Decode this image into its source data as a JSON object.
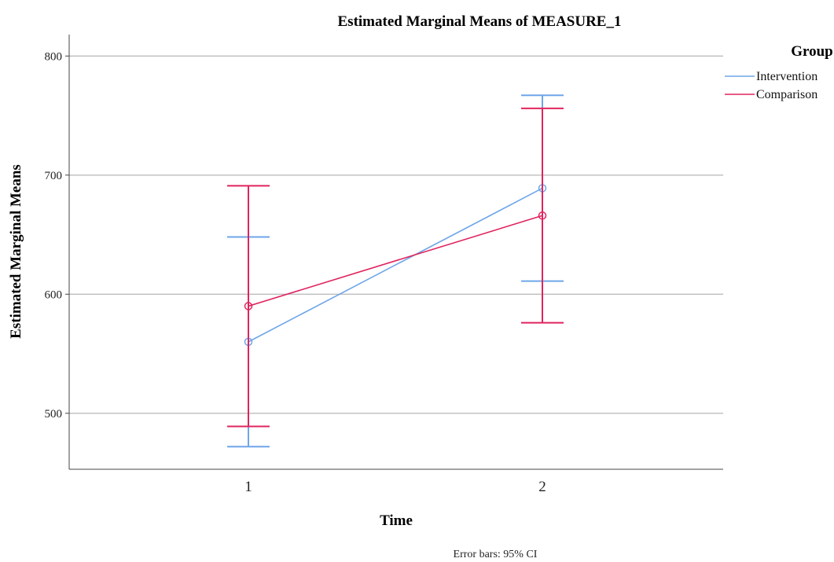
{
  "chart_data": {
    "type": "line",
    "title": "Estimated Marginal Means of MEASURE_1",
    "xlabel": "Time",
    "ylabel": "Estimated Marginal Means",
    "categories": [
      "1",
      "2"
    ],
    "ylim": [
      453,
      818
    ],
    "yticks": [
      500,
      600,
      700,
      800
    ],
    "grid": true,
    "legend": {
      "title": "Group",
      "position": "right"
    },
    "series": [
      {
        "name": "Intervention",
        "color": "#6ea6e8",
        "values": [
          560,
          689
        ],
        "ci_lower": [
          472,
          611
        ],
        "ci_upper": [
          648,
          767
        ]
      },
      {
        "name": "Comparison",
        "color": "#e0245e",
        "values": [
          590,
          666
        ],
        "ci_lower": [
          489,
          576
        ],
        "ci_upper": [
          691,
          756
        ]
      }
    ],
    "footnote": "Error bars: 95% CI"
  }
}
